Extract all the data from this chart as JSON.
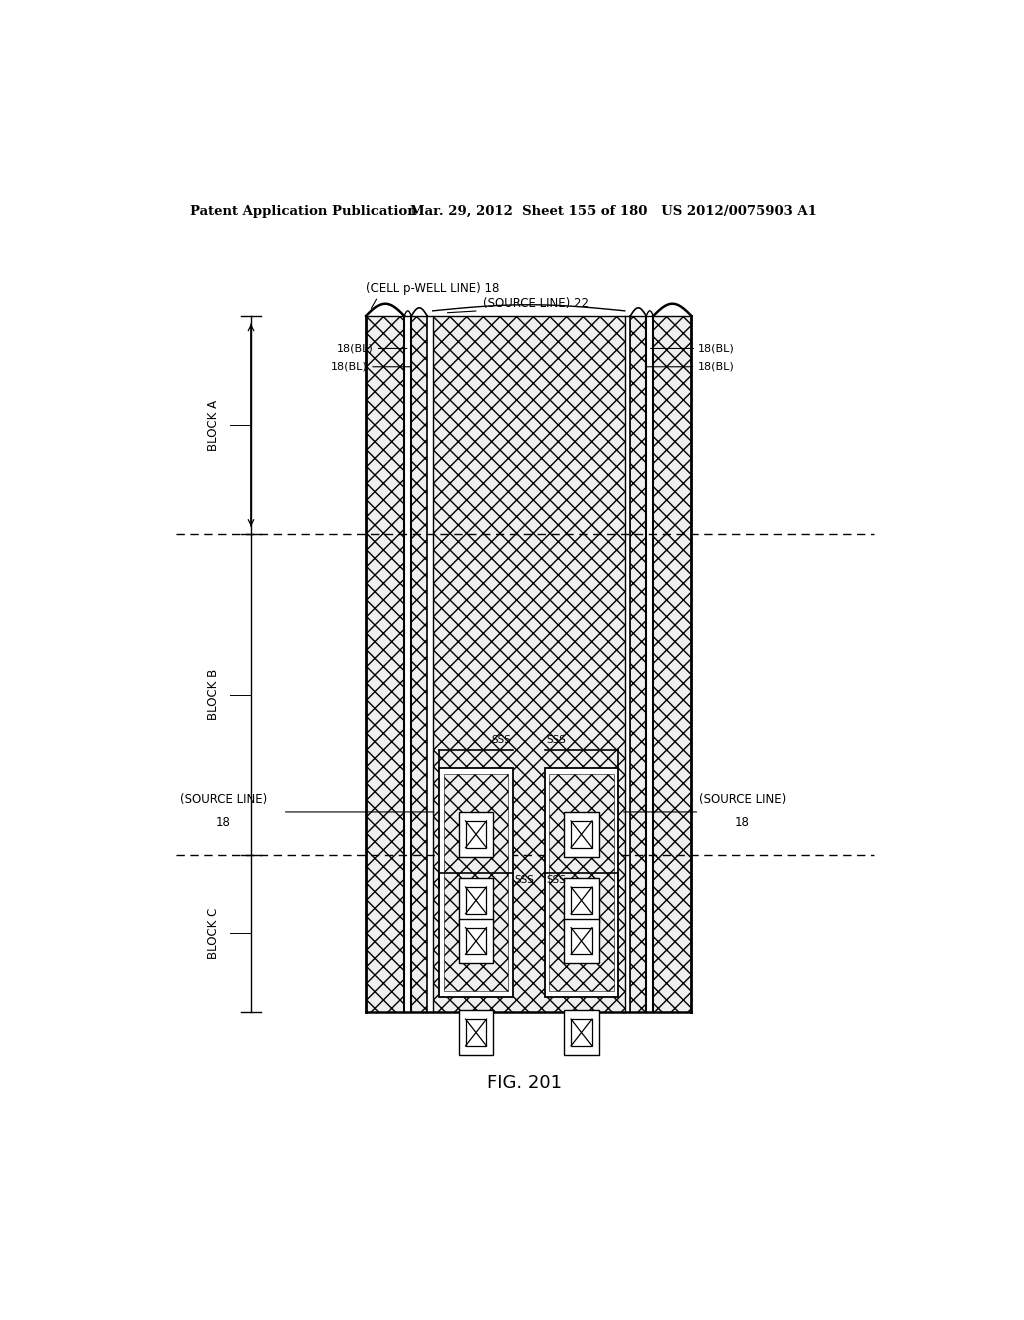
{
  "header_left": "Patent Application Publication",
  "header_right": "Mar. 29, 2012  Sheet 155 of 180   US 2012/0075903 A1",
  "title": "FIG. 201",
  "bg_color": "#ffffff",
  "label_cell_pwell": "(CELL p-WELL LINE) 18",
  "label_source_line_top": "(SOURCE LINE) 22",
  "label_18bl_tl": "18(BL)",
  "label_18bl_tl2": "18(BL)",
  "label_18bl_tr": "18(BL)",
  "label_18bl_tr2": "18(BL)",
  "label_source_left": "(SOURCE LINE)",
  "label_source_right": "(SOURCE LINE)",
  "label_18_left": "18",
  "label_18_right": "18",
  "label_block_a": "BLOCK A",
  "label_block_b": "BLOCK B",
  "label_block_c": "BLOCK C",
  "label_sss": "SSS"
}
